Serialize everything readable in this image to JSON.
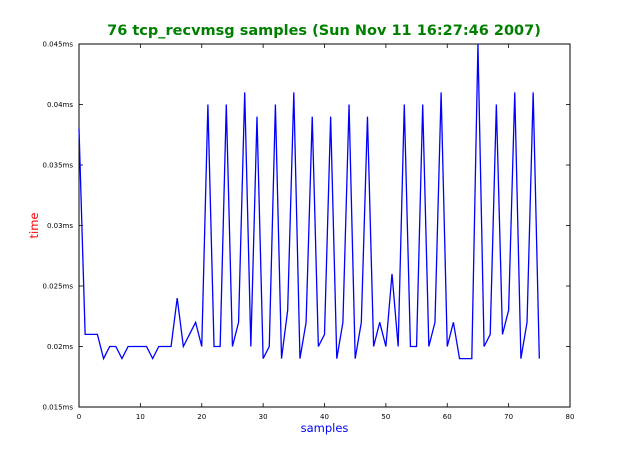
{
  "chart_data": {
    "type": "line",
    "title": "76 tcp_recvmsg samples (Sun Nov 11 16:27:46 2007)",
    "xlabel": "samples",
    "ylabel": "time",
    "xlim": [
      0,
      80
    ],
    "ylim": [
      0.015,
      0.045
    ],
    "x_ticks": [
      0,
      10,
      20,
      30,
      40,
      50,
      60,
      70,
      80
    ],
    "x_tick_labels": [
      "0",
      "10",
      "20",
      "30",
      "40",
      "50",
      "60",
      "70",
      "80"
    ],
    "y_ticks": [
      0.015,
      0.02,
      0.025,
      0.03,
      0.035,
      0.04,
      0.045
    ],
    "y_tick_labels": [
      "0.015ms",
      "0.02ms",
      "0.025ms",
      "0.03ms",
      "0.035ms",
      "0.04ms",
      "0.045ms"
    ],
    "grid": false,
    "colors": {
      "title": "#008000",
      "xlabel": "#0000ff",
      "ylabel": "#ff0000",
      "line": "#0000ff"
    },
    "series": [
      {
        "x": [
          0,
          1,
          2,
          3,
          4,
          5,
          6,
          7,
          8,
          9,
          10,
          11,
          12,
          13,
          14,
          15,
          16,
          17,
          18,
          19,
          20,
          21,
          22,
          23,
          24,
          25,
          26,
          27,
          28,
          29,
          30,
          31,
          32,
          33,
          34,
          35,
          36,
          37,
          38,
          39,
          40,
          41,
          42,
          43,
          44,
          45,
          46,
          47,
          48,
          49,
          50,
          51,
          52,
          53,
          54,
          55,
          56,
          57,
          58,
          59,
          60,
          61,
          62,
          63,
          64,
          65,
          66,
          67,
          68,
          69,
          70,
          71,
          72,
          73,
          74,
          75
        ],
        "values": [
          0.038,
          0.021,
          0.021,
          0.021,
          0.019,
          0.02,
          0.02,
          0.019,
          0.02,
          0.02,
          0.02,
          0.02,
          0.019,
          0.02,
          0.02,
          0.02,
          0.024,
          0.02,
          0.021,
          0.022,
          0.02,
          0.04,
          0.02,
          0.02,
          0.04,
          0.02,
          0.022,
          0.041,
          0.02,
          0.039,
          0.019,
          0.02,
          0.04,
          0.019,
          0.023,
          0.041,
          0.019,
          0.022,
          0.039,
          0.02,
          0.021,
          0.039,
          0.019,
          0.022,
          0.04,
          0.019,
          0.022,
          0.039,
          0.02,
          0.022,
          0.02,
          0.026,
          0.02,
          0.04,
          0.02,
          0.02,
          0.04,
          0.02,
          0.022,
          0.041,
          0.02,
          0.022,
          0.019,
          0.019,
          0.019,
          0.045,
          0.02,
          0.021,
          0.04,
          0.021,
          0.023,
          0.041,
          0.019,
          0.022,
          0.041,
          0.019
        ]
      }
    ]
  }
}
